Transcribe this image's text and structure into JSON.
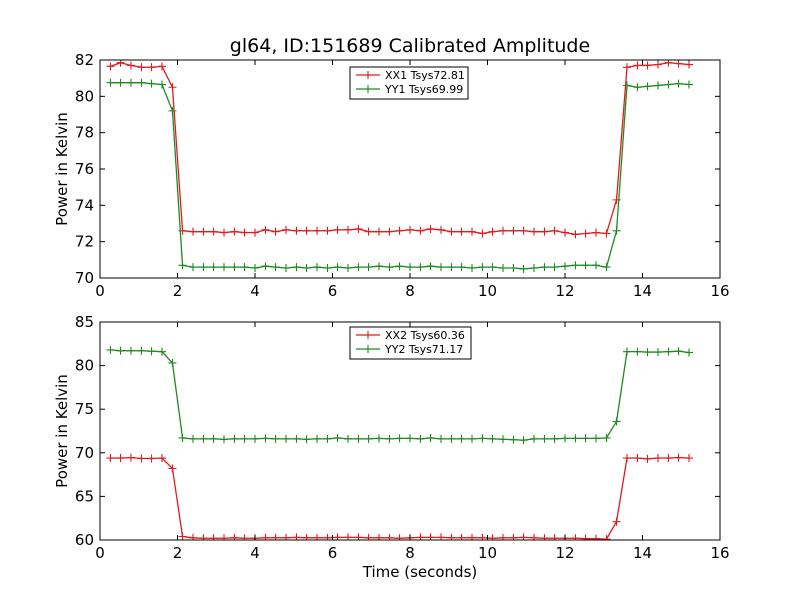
{
  "title": "gl64, ID:151689 Calibrated Amplitude",
  "chart_data": [
    {
      "type": "line",
      "title": "gl64, ID:151689 Calibrated Amplitude",
      "xlabel": "",
      "ylabel": "Power in Kelvin",
      "xlim": [
        0,
        16
      ],
      "ylim": [
        70,
        82
      ],
      "xticks": [
        "0",
        "2",
        "4",
        "6",
        "8",
        "10",
        "12",
        "14",
        "16"
      ],
      "yticks": [
        "70",
        "72",
        "74",
        "76",
        "78",
        "80",
        "82"
      ],
      "legend_position": "top-center",
      "x": [
        0.27,
        0.53,
        0.8,
        1.07,
        1.33,
        1.6,
        1.87,
        2.13,
        2.4,
        2.67,
        2.93,
        3.2,
        3.47,
        3.73,
        4.0,
        4.27,
        4.53,
        4.8,
        5.07,
        5.33,
        5.6,
        5.87,
        6.13,
        6.4,
        6.67,
        6.93,
        7.2,
        7.47,
        7.73,
        8.0,
        8.27,
        8.53,
        8.8,
        9.07,
        9.33,
        9.6,
        9.87,
        10.13,
        10.4,
        10.67,
        10.93,
        11.2,
        11.47,
        11.73,
        12.0,
        12.27,
        12.53,
        12.8,
        13.07,
        13.33,
        13.6,
        13.87,
        14.13,
        14.4,
        14.67,
        14.93,
        15.2
      ],
      "series": [
        {
          "name": "XX1 Tsys72.81",
          "color": "#e41a1c",
          "values": [
            81.65,
            81.85,
            81.7,
            81.6,
            81.6,
            81.65,
            80.5,
            72.6,
            72.55,
            72.55,
            72.55,
            72.5,
            72.55,
            72.5,
            72.5,
            72.65,
            72.55,
            72.65,
            72.6,
            72.6,
            72.6,
            72.6,
            72.65,
            72.65,
            72.7,
            72.55,
            72.55,
            72.55,
            72.6,
            72.65,
            72.6,
            72.7,
            72.65,
            72.55,
            72.55,
            72.55,
            72.45,
            72.55,
            72.6,
            72.6,
            72.6,
            72.55,
            72.55,
            72.6,
            72.5,
            72.4,
            72.45,
            72.5,
            72.45,
            74.3,
            81.6,
            81.7,
            81.7,
            81.75,
            81.85,
            81.8,
            81.75
          ]
        },
        {
          "name": "YY1 Tsys69.99",
          "color": "#1f8a1f",
          "values": [
            80.75,
            80.75,
            80.75,
            80.75,
            80.7,
            80.65,
            79.2,
            70.7,
            70.6,
            70.6,
            70.6,
            70.6,
            70.6,
            70.6,
            70.55,
            70.65,
            70.6,
            70.55,
            70.6,
            70.55,
            70.6,
            70.55,
            70.6,
            70.55,
            70.6,
            70.6,
            70.65,
            70.6,
            70.65,
            70.6,
            70.6,
            70.65,
            70.6,
            70.6,
            70.6,
            70.55,
            70.6,
            70.6,
            70.55,
            70.55,
            70.5,
            70.55,
            70.6,
            70.6,
            70.65,
            70.7,
            70.7,
            70.7,
            70.6,
            72.6,
            80.6,
            80.5,
            80.55,
            80.6,
            80.65,
            80.7,
            80.65
          ]
        }
      ]
    },
    {
      "type": "line",
      "title": "",
      "xlabel": "Time (seconds)",
      "ylabel": "Power in Kelvin",
      "xlim": [
        0,
        16
      ],
      "ylim": [
        60,
        85
      ],
      "xticks": [
        "0",
        "2",
        "4",
        "6",
        "8",
        "10",
        "12",
        "14",
        "16"
      ],
      "yticks": [
        "60",
        "65",
        "70",
        "75",
        "80",
        "85"
      ],
      "legend_position": "top-center",
      "x": [
        0.27,
        0.53,
        0.8,
        1.07,
        1.33,
        1.6,
        1.87,
        2.13,
        2.4,
        2.67,
        2.93,
        3.2,
        3.47,
        3.73,
        4.0,
        4.27,
        4.53,
        4.8,
        5.07,
        5.33,
        5.6,
        5.87,
        6.13,
        6.4,
        6.67,
        6.93,
        7.2,
        7.47,
        7.73,
        8.0,
        8.27,
        8.53,
        8.8,
        9.07,
        9.33,
        9.6,
        9.87,
        10.13,
        10.4,
        10.67,
        10.93,
        11.2,
        11.47,
        11.73,
        12.0,
        12.27,
        12.53,
        12.8,
        13.07,
        13.33,
        13.6,
        13.87,
        14.13,
        14.4,
        14.67,
        14.93,
        15.2
      ],
      "series": [
        {
          "name": "XX2 Tsys60.36",
          "color": "#e41a1c",
          "values": [
            69.4,
            69.4,
            69.45,
            69.35,
            69.35,
            69.4,
            68.2,
            60.4,
            60.25,
            60.2,
            60.2,
            60.2,
            60.25,
            60.2,
            60.2,
            60.25,
            60.25,
            60.25,
            60.3,
            60.25,
            60.25,
            60.25,
            60.3,
            60.3,
            60.3,
            60.25,
            60.25,
            60.25,
            60.2,
            60.25,
            60.3,
            60.3,
            60.3,
            60.25,
            60.25,
            60.25,
            60.25,
            60.2,
            60.25,
            60.25,
            60.3,
            60.25,
            60.2,
            60.2,
            60.2,
            60.2,
            60.15,
            60.15,
            60.1,
            62.1,
            69.4,
            69.4,
            69.3,
            69.4,
            69.4,
            69.45,
            69.4
          ]
        },
        {
          "name": "YY2 Tsys71.17",
          "color": "#1f8a1f",
          "values": [
            81.8,
            81.7,
            81.7,
            81.7,
            81.65,
            81.6,
            80.3,
            71.7,
            71.6,
            71.6,
            71.6,
            71.55,
            71.6,
            71.6,
            71.6,
            71.65,
            71.6,
            71.6,
            71.6,
            71.55,
            71.6,
            71.6,
            71.7,
            71.6,
            71.6,
            71.6,
            71.65,
            71.6,
            71.65,
            71.65,
            71.6,
            71.7,
            71.6,
            71.6,
            71.6,
            71.6,
            71.65,
            71.6,
            71.55,
            71.5,
            71.45,
            71.6,
            71.6,
            71.6,
            71.65,
            71.65,
            71.65,
            71.65,
            71.7,
            73.6,
            81.6,
            81.6,
            81.55,
            81.55,
            81.6,
            81.65,
            81.5
          ]
        }
      ]
    }
  ]
}
